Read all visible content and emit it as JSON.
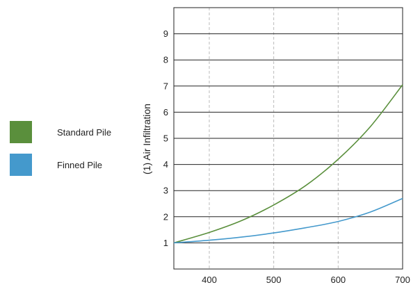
{
  "chart_data": {
    "type": "line",
    "title": "",
    "xlabel": "",
    "ylabel": "(1) Air Infiltration",
    "xlim": [
      345,
      700
    ],
    "ylim": [
      0,
      10
    ],
    "x_ticks": [
      400,
      500,
      600,
      700
    ],
    "y_ticks": [
      1,
      2,
      3,
      4,
      5,
      6,
      7,
      8,
      9
    ],
    "grid": {
      "horizontal": true,
      "vertical": true,
      "vertical_style": "dashed"
    },
    "legend_position": "left",
    "series": [
      {
        "name": "Standard Pile",
        "color": "#5a8f3c",
        "x": [
          345,
          400,
          450,
          500,
          550,
          600,
          650,
          700
        ],
        "y": [
          1.0,
          1.4,
          1.85,
          2.45,
          3.2,
          4.2,
          5.45,
          7.05
        ]
      },
      {
        "name": "Finned Pile",
        "color": "#4499cc",
        "x": [
          345,
          400,
          450,
          500,
          550,
          600,
          650,
          700
        ],
        "y": [
          1.0,
          1.1,
          1.22,
          1.38,
          1.58,
          1.82,
          2.18,
          2.7
        ]
      }
    ]
  }
}
